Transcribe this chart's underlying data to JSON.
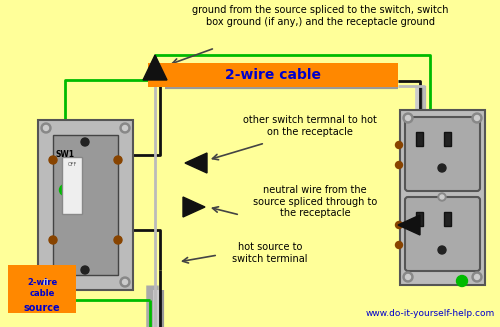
{
  "bg_color": "#FFFF99",
  "website": "www.do-it-yourself-help.com",
  "orange_label_top": "2-wire cable",
  "orange_label_bottom": "2-wire\ncable",
  "source_label": "source",
  "annotation1": "ground from the source spliced to the switch, switch\nbox ground (if any,) and the receptacle ground",
  "annotation2": "other switch termnal to hot\non the receptacle",
  "annotation3": "neutral wire from the\nsource spliced through to\nthe receptacle",
  "annotation4": "hot source to\nswitch terminal",
  "orange_color": "#FF8800",
  "blue_color": "#0000CC",
  "wire_black": "#111111",
  "wire_white": "#BBBBBB",
  "wire_green": "#00BB00",
  "wire_gray": "#999999",
  "switch_plate_color": "#AAAAAA",
  "switch_body_color": "#BBBBBB",
  "outlet_color": "#AAAAAA",
  "screw_color": "#888888",
  "terminal_color": "#884400"
}
